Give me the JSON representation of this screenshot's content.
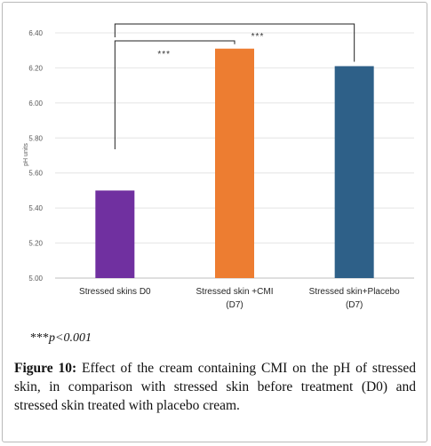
{
  "chart_data": {
    "type": "bar",
    "ylabel": "pH units",
    "ylim": [
      5.0,
      6.4
    ],
    "yticks": [
      "5.00",
      "5.20",
      "5.40",
      "5.60",
      "5.80",
      "6.00",
      "6.20",
      "6.40"
    ],
    "grid": true,
    "categories": [
      {
        "lines": [
          "Stressed skins D0"
        ]
      },
      {
        "lines": [
          "Stressed skin +CMI",
          "(D7)"
        ]
      },
      {
        "lines": [
          "Stressed skin+Placebo",
          "(D7)"
        ]
      }
    ],
    "values": [
      5.5,
      6.31,
      6.21
    ],
    "colors": [
      "#7030a0",
      "#ed7d31",
      "#2e6088"
    ],
    "annotations": [
      {
        "text": "***",
        "from": 0,
        "to": 1
      },
      {
        "text": "***",
        "from": 0,
        "to": 2
      }
    ]
  },
  "note": {
    "stars": "***",
    "pvalue": "p<0.001"
  },
  "caption": {
    "label": "Figure 10:",
    "text": " Effect of the cream containing CMI on the pH of stressed skin, in comparison with stressed skin before treatment (D0) and stressed skin treated with placebo cream."
  }
}
